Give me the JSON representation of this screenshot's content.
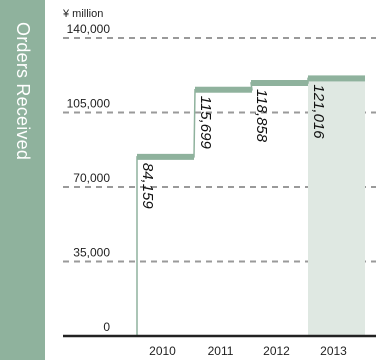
{
  "chart_data": {
    "type": "bar",
    "title": "Orders Received",
    "ylabel": "¥ million",
    "categories": [
      "2010",
      "2011",
      "2012",
      "2013"
    ],
    "values": [
      84159,
      115699,
      118858,
      121016
    ],
    "value_labels": [
      "84,159",
      "115,699",
      "118,858",
      "121,016"
    ],
    "ylim": [
      0,
      140000
    ],
    "yticks": [
      0,
      35000,
      70000,
      105000,
      140000
    ],
    "ytick_labels": [
      "0",
      "35,000",
      "70,000",
      "105,000",
      "140,000"
    ],
    "grid": true,
    "highlight_category": "2013"
  },
  "colors": {
    "banner": "#8fb29d",
    "step_line": "#8fb29d",
    "highlight_fill": "#dfe8e2",
    "grid": "#9a9a9a",
    "baseline": "#222222"
  }
}
